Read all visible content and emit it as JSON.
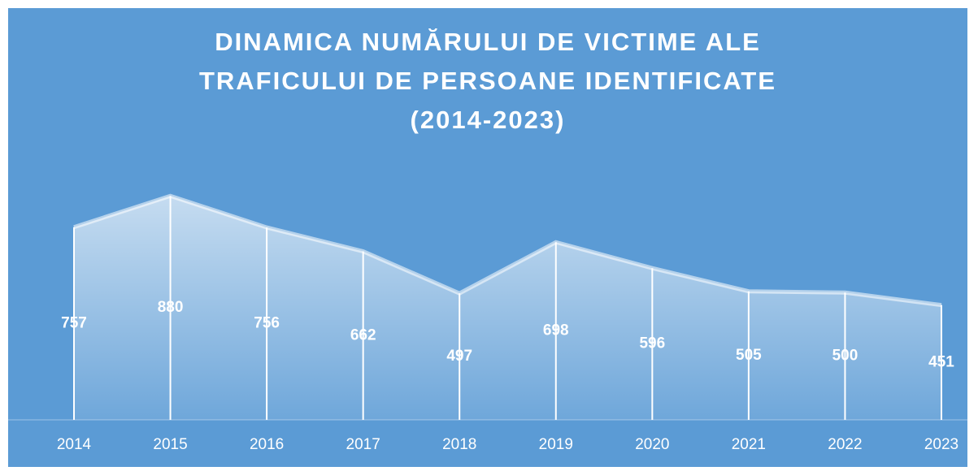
{
  "chart_data": {
    "type": "area",
    "title": "DINAMICA NUMĂRULUI DE VICTIME ALE TRAFICULUI DE PERSOANE IDENTIFICATE (2014-2023)",
    "categories": [
      "2014",
      "2015",
      "2016",
      "2017",
      "2018",
      "2019",
      "2020",
      "2021",
      "2022",
      "2023"
    ],
    "values": [
      757,
      880,
      756,
      662,
      497,
      698,
      596,
      505,
      500,
      451
    ],
    "color": "#ffffff",
    "ylim": [
      0,
      1000
    ]
  }
}
